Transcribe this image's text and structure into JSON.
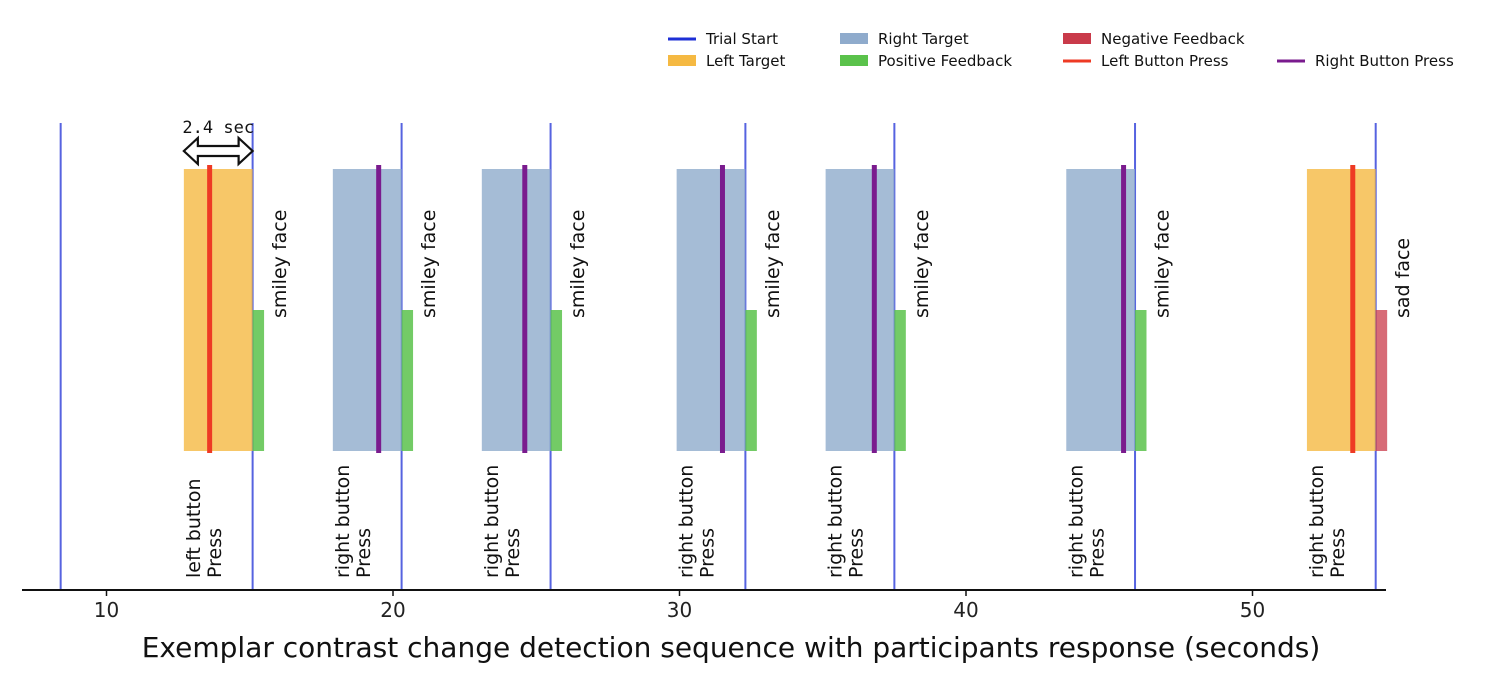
{
  "chart_data": {
    "type": "timeline",
    "xlabel": "Exemplar contrast change detection sequence with participants response (seconds)",
    "xlim": [
      7.3,
      55.0
    ],
    "xticks": [
      10,
      20,
      30,
      40,
      50
    ],
    "duration_annotation": {
      "text": "2.4 sec",
      "from": 12.7,
      "to": 15.1
    },
    "legend": [
      {
        "label": "Trial Start",
        "kind": "line",
        "color": "#1d2fd6"
      },
      {
        "label": "Left Target",
        "kind": "box",
        "color": "#f5b942"
      },
      {
        "label": "Right Target",
        "kind": "box",
        "color": "#8fabcc"
      },
      {
        "label": "Positive Feedback",
        "kind": "box",
        "color": "#5ac24b"
      },
      {
        "label": "Negative Feedback",
        "kind": "box",
        "color": "#c93a4a"
      },
      {
        "label": "Left Button Press",
        "kind": "line",
        "color": "#ee3a24"
      },
      {
        "label": "Right Button Press",
        "kind": "line",
        "color": "#7a1b8e"
      }
    ],
    "trial_starts": [
      8.4,
      15.1,
      20.3,
      25.5,
      32.3,
      37.5,
      45.9,
      54.3
    ],
    "trials": [
      {
        "side": "left",
        "target": [
          12.7,
          15.1
        ],
        "press": 13.6,
        "feedback": "positive",
        "feedback_range": [
          15.1,
          15.5
        ],
        "response_label": [
          "left button",
          "Press"
        ],
        "feedback_label": "smiley face"
      },
      {
        "side": "right",
        "target": [
          17.9,
          20.3
        ],
        "press": 19.5,
        "feedback": "positive",
        "feedback_range": [
          20.3,
          20.7
        ],
        "response_label": [
          "right button",
          "Press"
        ],
        "feedback_label": "smiley face"
      },
      {
        "side": "right",
        "target": [
          23.1,
          25.5
        ],
        "press": 24.6,
        "feedback": "positive",
        "feedback_range": [
          25.5,
          25.9
        ],
        "response_label": [
          "right button",
          "Press"
        ],
        "feedback_label": "smiley face"
      },
      {
        "side": "right",
        "target": [
          29.9,
          32.3
        ],
        "press": 31.5,
        "feedback": "positive",
        "feedback_range": [
          32.3,
          32.7
        ],
        "response_label": [
          "right button",
          "Press"
        ],
        "feedback_label": "smiley face"
      },
      {
        "side": "right",
        "target": [
          35.1,
          37.5
        ],
        "press": 36.8,
        "feedback": "positive",
        "feedback_range": [
          37.5,
          37.9
        ],
        "response_label": [
          "right button",
          "Press"
        ],
        "feedback_label": "smiley face"
      },
      {
        "side": "right",
        "target": [
          43.5,
          45.9
        ],
        "press": 45.5,
        "feedback": "positive",
        "feedback_range": [
          45.9,
          46.3
        ],
        "response_label": [
          "right button",
          "Press"
        ],
        "feedback_label": "smiley face"
      },
      {
        "side": "left",
        "target": [
          51.9,
          54.3
        ],
        "press": 53.5,
        "feedback": "negative",
        "feedback_range": [
          54.3,
          54.7
        ],
        "response_label": [
          "right button",
          "Press"
        ],
        "feedback_label": "sad face"
      }
    ]
  }
}
